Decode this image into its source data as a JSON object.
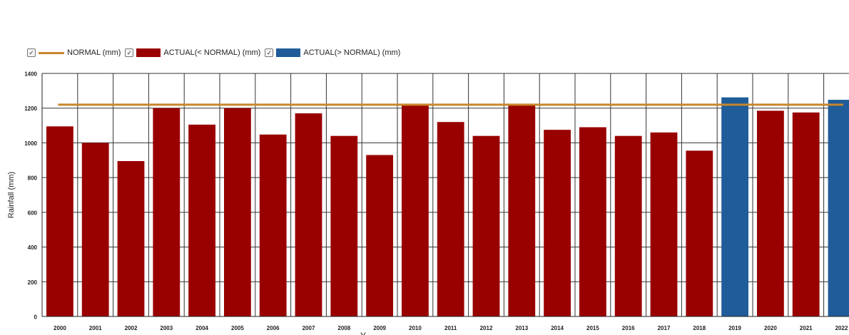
{
  "legend": {
    "check_glyph": "✓",
    "normal_label": "NORMAL (mm)",
    "below_label": "ACTUAL(< NORMAL) (mm)",
    "above_label": "ACTUAL(> NORMAL) (mm)"
  },
  "colors": {
    "normal_line": "#c8862a",
    "below": "#990000",
    "above": "#1f5c99",
    "grid": "#333333"
  },
  "chart_data": {
    "type": "bar",
    "ylabel": "Rainfall (mm)",
    "xlabel": "Y...",
    "ylim": [
      0,
      1400
    ],
    "yticks": [
      0,
      200,
      400,
      600,
      800,
      1000,
      1200,
      1400
    ],
    "grid": true,
    "legend_position": "top-left",
    "categories": [
      "2000",
      "2001",
      "2002",
      "2003",
      "2004",
      "2005",
      "2006",
      "2007",
      "2008",
      "2009",
      "2010",
      "2011",
      "2012",
      "2013",
      "2014",
      "2015",
      "2016",
      "2017",
      "2018",
      "2019",
      "2020",
      "2021",
      "2022"
    ],
    "normal": 1220,
    "series": [
      {
        "name": "ACTUAL(< NORMAL) (mm)",
        "values": [
          1095,
          1000,
          895,
          1200,
          1105,
          1200,
          1048,
          1170,
          1040,
          930,
          1215,
          1120,
          1040,
          1218,
          1075,
          1090,
          1040,
          1060,
          955,
          null,
          1185,
          1175,
          null
        ]
      },
      {
        "name": "ACTUAL(> NORMAL) (mm)",
        "values": [
          null,
          null,
          null,
          null,
          null,
          null,
          null,
          null,
          null,
          null,
          null,
          null,
          null,
          null,
          null,
          null,
          null,
          null,
          null,
          1262,
          null,
          null,
          1248
        ]
      }
    ]
  }
}
